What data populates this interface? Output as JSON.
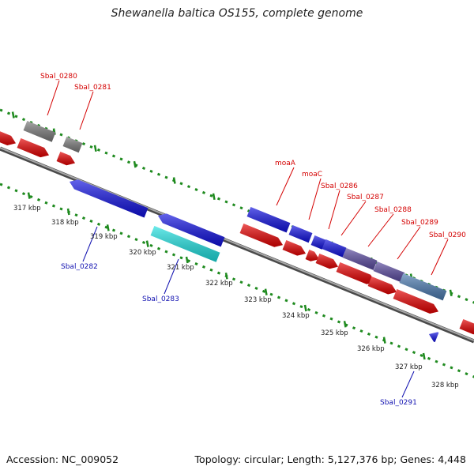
{
  "title": "Shewanella baltica OS155, complete genome",
  "footer": {
    "accession_label": "Accession:",
    "accession": "NC_009052",
    "topology_label": "Topology:",
    "topology": "circular",
    "length_label": "Length:",
    "length": "5,127,376 bp",
    "genes_label": "Genes:",
    "genes": "4,448"
  },
  "colors": {
    "backbone": "#8c8c8c",
    "tick_dots": "#1e8a1e",
    "label_top": "#d40000",
    "label_bottom": "#1010b0",
    "forward_cds": "#e60000",
    "reverse_cds": "#1010e0",
    "gray_feature": "#7a7a7a",
    "cyan_feature": "#1ee0e0",
    "purple_feature": "#5a4aa0",
    "steelblue_feature": "#4a7ab0"
  },
  "scale_labels": [
    "317 kbp",
    "318 kbp",
    "319 kbp",
    "320 kbp",
    "321 kbp",
    "322 kbp",
    "323 kbp",
    "324 kbp",
    "325 kbp",
    "326 kbp",
    "327 kbp",
    "328 kbp"
  ],
  "gene_labels_top": [
    "Sbal_0280",
    "Sbal_0281",
    "moaA",
    "moaC",
    "Sbal_0286",
    "Sbal_0287",
    "Sbal_0288",
    "Sbal_0289",
    "Sbal_0290"
  ],
  "gene_labels_bottom": [
    "Sbal_0282",
    "Sbal_0283",
    "Sbal_0291"
  ]
}
